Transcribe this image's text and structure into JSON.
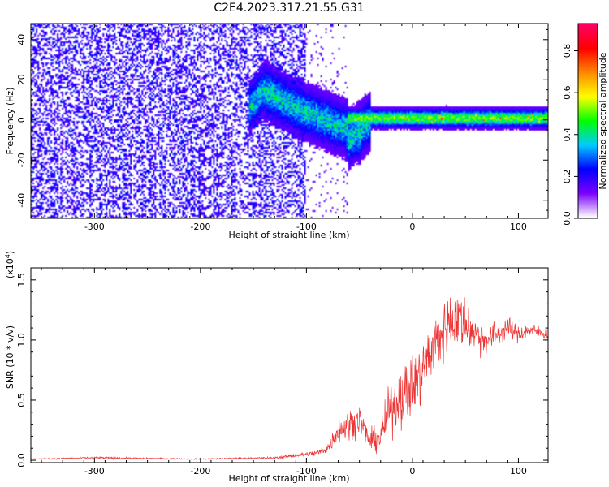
{
  "title": "C2E4.2023.317.21.55.G31",
  "chart_data": [
    {
      "type": "heatmap",
      "title": "C2E4.2023.317.21.55.G31",
      "xlabel": "Height of straight line (km)",
      "ylabel": "Frequency (Hz)",
      "xlim": [
        -360,
        128
      ],
      "ylim": [
        -49,
        48
      ],
      "x_ticks": [
        -300,
        -200,
        -100,
        0,
        100
      ],
      "x_tick_labels": [
        "-300",
        "-200",
        "-100",
        "0",
        "100"
      ],
      "y_ticks": [
        -40,
        -20,
        0,
        20,
        40
      ],
      "y_tick_labels": [
        "-40",
        "-20",
        "0",
        "20",
        "40"
      ],
      "colorbar": {
        "label": "Normalized spectral amplitude",
        "range": [
          0.0,
          0.93
        ],
        "ticks": [
          0.0,
          0.2,
          0.4,
          0.6,
          0.8
        ],
        "tick_labels": [
          "0.0",
          "0.2",
          "0.4",
          "0.6",
          "0.8"
        ],
        "colormap": [
          "#ffffff",
          "#7b00ff",
          "#0000ff",
          "#00ccff",
          "#00ff00",
          "#ffff00",
          "#ff8800",
          "#ff0000",
          "#ff0066"
        ]
      },
      "features": [
        {
          "x_range": [
            -360,
            -100
          ],
          "freq_range": [
            -49,
            48
          ],
          "amplitude": 0.08,
          "description_level": "noise"
        },
        {
          "x_range": [
            -155,
            -60
          ],
          "freq_center": [
            14,
            2,
            -10
          ],
          "amplitude": 0.35
        },
        {
          "x_range": [
            -60,
            128
          ],
          "freq_center": 0.5,
          "bandwidth": 4,
          "amplitude": 0.5
        }
      ]
    },
    {
      "type": "line",
      "xlabel": "Height of straight line (km)",
      "ylabel": "SNR (10 * v/v)",
      "y_scale_label": "(x10",
      "y_scale_exponent": "4",
      "y_scale_suffix": ")",
      "xlim": [
        -360,
        128
      ],
      "ylim": [
        -0.02,
        1.6
      ],
      "x_ticks": [
        -300,
        -200,
        -100,
        0,
        100
      ],
      "x_tick_labels": [
        "-300",
        "-200",
        "-100",
        "0",
        "100"
      ],
      "y_ticks": [
        0.0,
        0.5,
        1.0,
        1.5
      ],
      "y_tick_labels": [
        "0.0",
        "0.5",
        "1.0",
        "1.5"
      ],
      "color": "#ee3333",
      "series": [
        {
          "x": [
            -360,
            -300,
            -200,
            -130,
            -110,
            -100,
            -90,
            -80,
            -70,
            -60,
            -50,
            -40,
            -30,
            -20,
            -10,
            0,
            10,
            20,
            30,
            40,
            50,
            60,
            70,
            80,
            90,
            100,
            110,
            128
          ],
          "values": [
            0.01,
            0.02,
            0.01,
            0.02,
            0.04,
            0.05,
            0.06,
            0.1,
            0.25,
            0.3,
            0.35,
            0.15,
            0.2,
            0.45,
            0.55,
            0.6,
            0.75,
            0.95,
            1.1,
            1.2,
            1.15,
            1.05,
            1.0,
            1.05,
            1.1,
            1.05,
            1.08,
            1.05
          ],
          "noise": [
            0.005,
            0.01,
            0.005,
            0.01,
            0.02,
            0.02,
            0.03,
            0.05,
            0.12,
            0.14,
            0.15,
            0.1,
            0.15,
            0.25,
            0.3,
            0.3,
            0.3,
            0.3,
            0.32,
            0.3,
            0.25,
            0.18,
            0.15,
            0.12,
            0.1,
            0.08,
            0.07,
            0.06
          ]
        }
      ]
    }
  ]
}
